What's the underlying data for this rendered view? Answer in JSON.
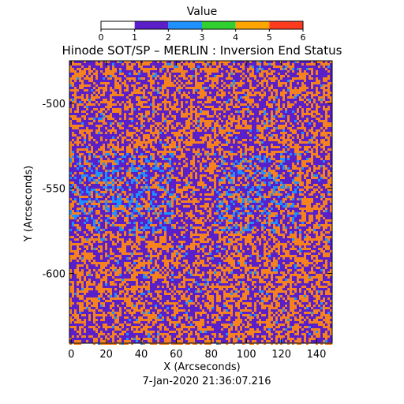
{
  "chart_data": {
    "type": "heatmap",
    "title": "Hinode SOT/SP – MERLIN : Inversion End Status",
    "xlabel": "X (Arcseconds)",
    "ylabel": "Y (Arcseconds)",
    "timestamp": "7-Jan-2020 21:36:07.216",
    "xlim": [
      -1,
      149
    ],
    "ylim": [
      -641,
      -475
    ],
    "x_ticks": [
      "0",
      "20",
      "40",
      "60",
      "80",
      "100",
      "120",
      "140"
    ],
    "y_ticks": [
      "-500",
      "-550",
      "-600"
    ],
    "y_tick_values": [
      -500,
      -550,
      -600
    ],
    "x_tick_values": [
      0,
      20,
      40,
      60,
      80,
      100,
      120,
      140
    ],
    "colorbar": {
      "label": "Value",
      "ticks": [
        "0",
        "1",
        "2",
        "3",
        "4",
        "5",
        "6"
      ],
      "tick_values": [
        0,
        1,
        2,
        3,
        4,
        5,
        6
      ],
      "bins": [
        {
          "from": 0,
          "to": 1,
          "color": "#ffffff"
        },
        {
          "from": 1,
          "to": 2,
          "color": "#5a1fc8"
        },
        {
          "from": 2,
          "to": 3,
          "color": "#1e90ff"
        },
        {
          "from": 3,
          "to": 4,
          "color": "#2fd02f"
        },
        {
          "from": 4,
          "to": 5,
          "color": "#ffa500"
        },
        {
          "from": 5,
          "to": 6,
          "color": "#ff3b1f"
        }
      ]
    },
    "dominant_values": [
      {
        "value": "1",
        "color": "#5a1fc8"
      },
      {
        "value": "4",
        "color": "#f5821f"
      },
      {
        "value": "2",
        "color": "#1e90ff"
      }
    ]
  }
}
